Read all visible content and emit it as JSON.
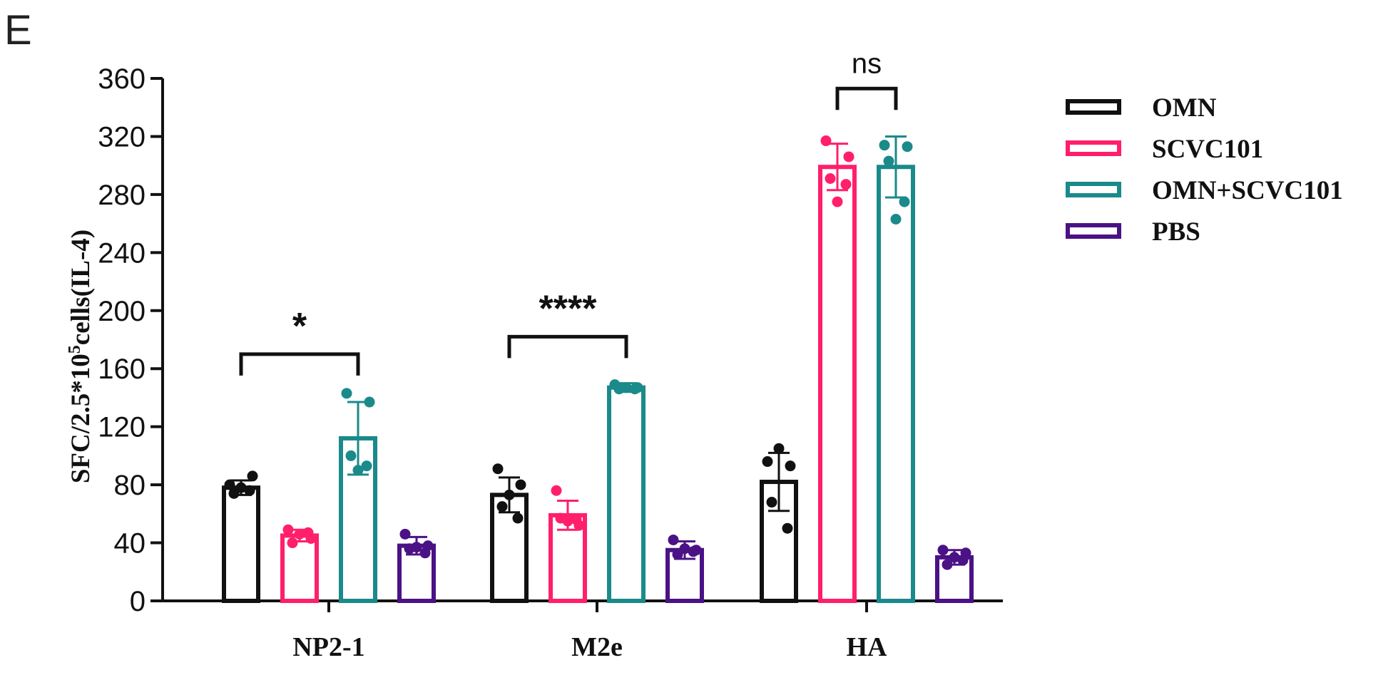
{
  "panel_label": "E",
  "chart_data": {
    "type": "bar",
    "ylabel_main": "SFC/2.5*10",
    "ylabel_sup": "5",
    "ylabel_rest": "cells(IL-4)",
    "ylim": [
      0,
      360
    ],
    "yticks": [
      0,
      40,
      80,
      120,
      160,
      200,
      240,
      280,
      320,
      360
    ],
    "ytick_labels": [
      "0",
      "40",
      "80",
      "120",
      "160",
      "200",
      "240",
      "280",
      "320",
      "360"
    ],
    "categories": [
      "NP2-1",
      "M2e",
      "HA"
    ],
    "series": [
      {
        "name": "OMN",
        "color": "#111111",
        "values": [
          78,
          73,
          82
        ],
        "errors": [
          5,
          12,
          20
        ],
        "points": [
          [
            80,
            86,
            74,
            76,
            78
          ],
          [
            91,
            80,
            65,
            57,
            73
          ],
          [
            96,
            93,
            68,
            50,
            105
          ]
        ]
      },
      {
        "name": "SCVC101",
        "color": "#ff1f6a",
        "values": [
          45,
          59,
          299
        ],
        "errors": [
          4,
          10,
          16
        ],
        "points": [
          [
            49,
            43,
            40,
            47,
            46
          ],
          [
            76,
            52,
            57,
            56,
            55
          ],
          [
            317,
            306,
            291,
            287,
            275
          ]
        ]
      },
      {
        "name": "OMN+SCVC101",
        "color": "#1a8a8a",
        "values": [
          112,
          147,
          299
        ],
        "errors": [
          25,
          3,
          21
        ],
        "points": [
          [
            143,
            137,
            100,
            93,
            90
          ],
          [
            149,
            147,
            146,
            146,
            147
          ],
          [
            314,
            313,
            303,
            275,
            263
          ]
        ]
      },
      {
        "name": "PBS",
        "color": "#4b1286",
        "values": [
          38,
          35,
          30
        ],
        "errors": [
          6,
          6,
          5
        ],
        "points": [
          [
            46,
            38,
            36,
            33,
            37
          ],
          [
            42,
            35,
            32,
            34,
            36
          ],
          [
            35,
            33,
            25,
            28,
            30
          ]
        ]
      }
    ],
    "annotations": [
      {
        "label": "*",
        "category": 0,
        "from_series": 0,
        "to_series": 2,
        "y": 170
      },
      {
        "label": "****",
        "category": 1,
        "from_series": 0,
        "to_series": 2,
        "y": 182
      },
      {
        "label": "ns",
        "category": 2,
        "from_series": 1,
        "to_series": 2,
        "y": 353
      }
    ]
  }
}
